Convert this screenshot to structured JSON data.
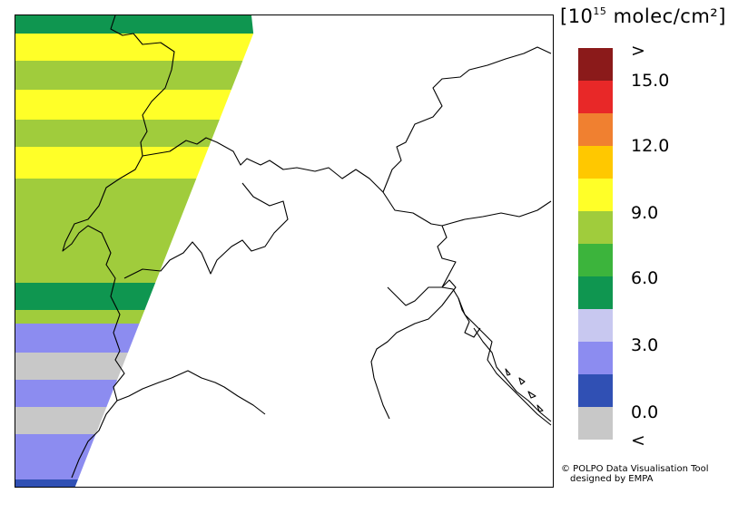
{
  "unit": {
    "open": "[10",
    "power": "15",
    "rest": " molec/cm²]"
  },
  "legend": {
    "colors": [
      "#8b1a1a",
      "#e82828",
      "#f08030",
      "#ffc800",
      "#ffff28",
      "#a0cc3c",
      "#3cb43c",
      "#0f9650",
      "#c8c8f0",
      "#8c8cf0",
      "#3050b4",
      "#c8c8c8"
    ],
    "tick_labels": [
      ">",
      "15.0",
      "12.0",
      "9.0",
      "6.0",
      "3.0",
      "0.0",
      "<"
    ]
  },
  "credit": {
    "line1": "© POLPO Data Visualisation Tool",
    "line2": "designed by EMPA"
  },
  "map": {
    "swath_colors": [
      "#ffc800",
      "#ffff28",
      "#0f9650",
      "#a0cc3c",
      "#3cb43c",
      "#8c8cf0",
      "#c8c8c8",
      "#3050b4"
    ],
    "border_color": "#000000"
  }
}
